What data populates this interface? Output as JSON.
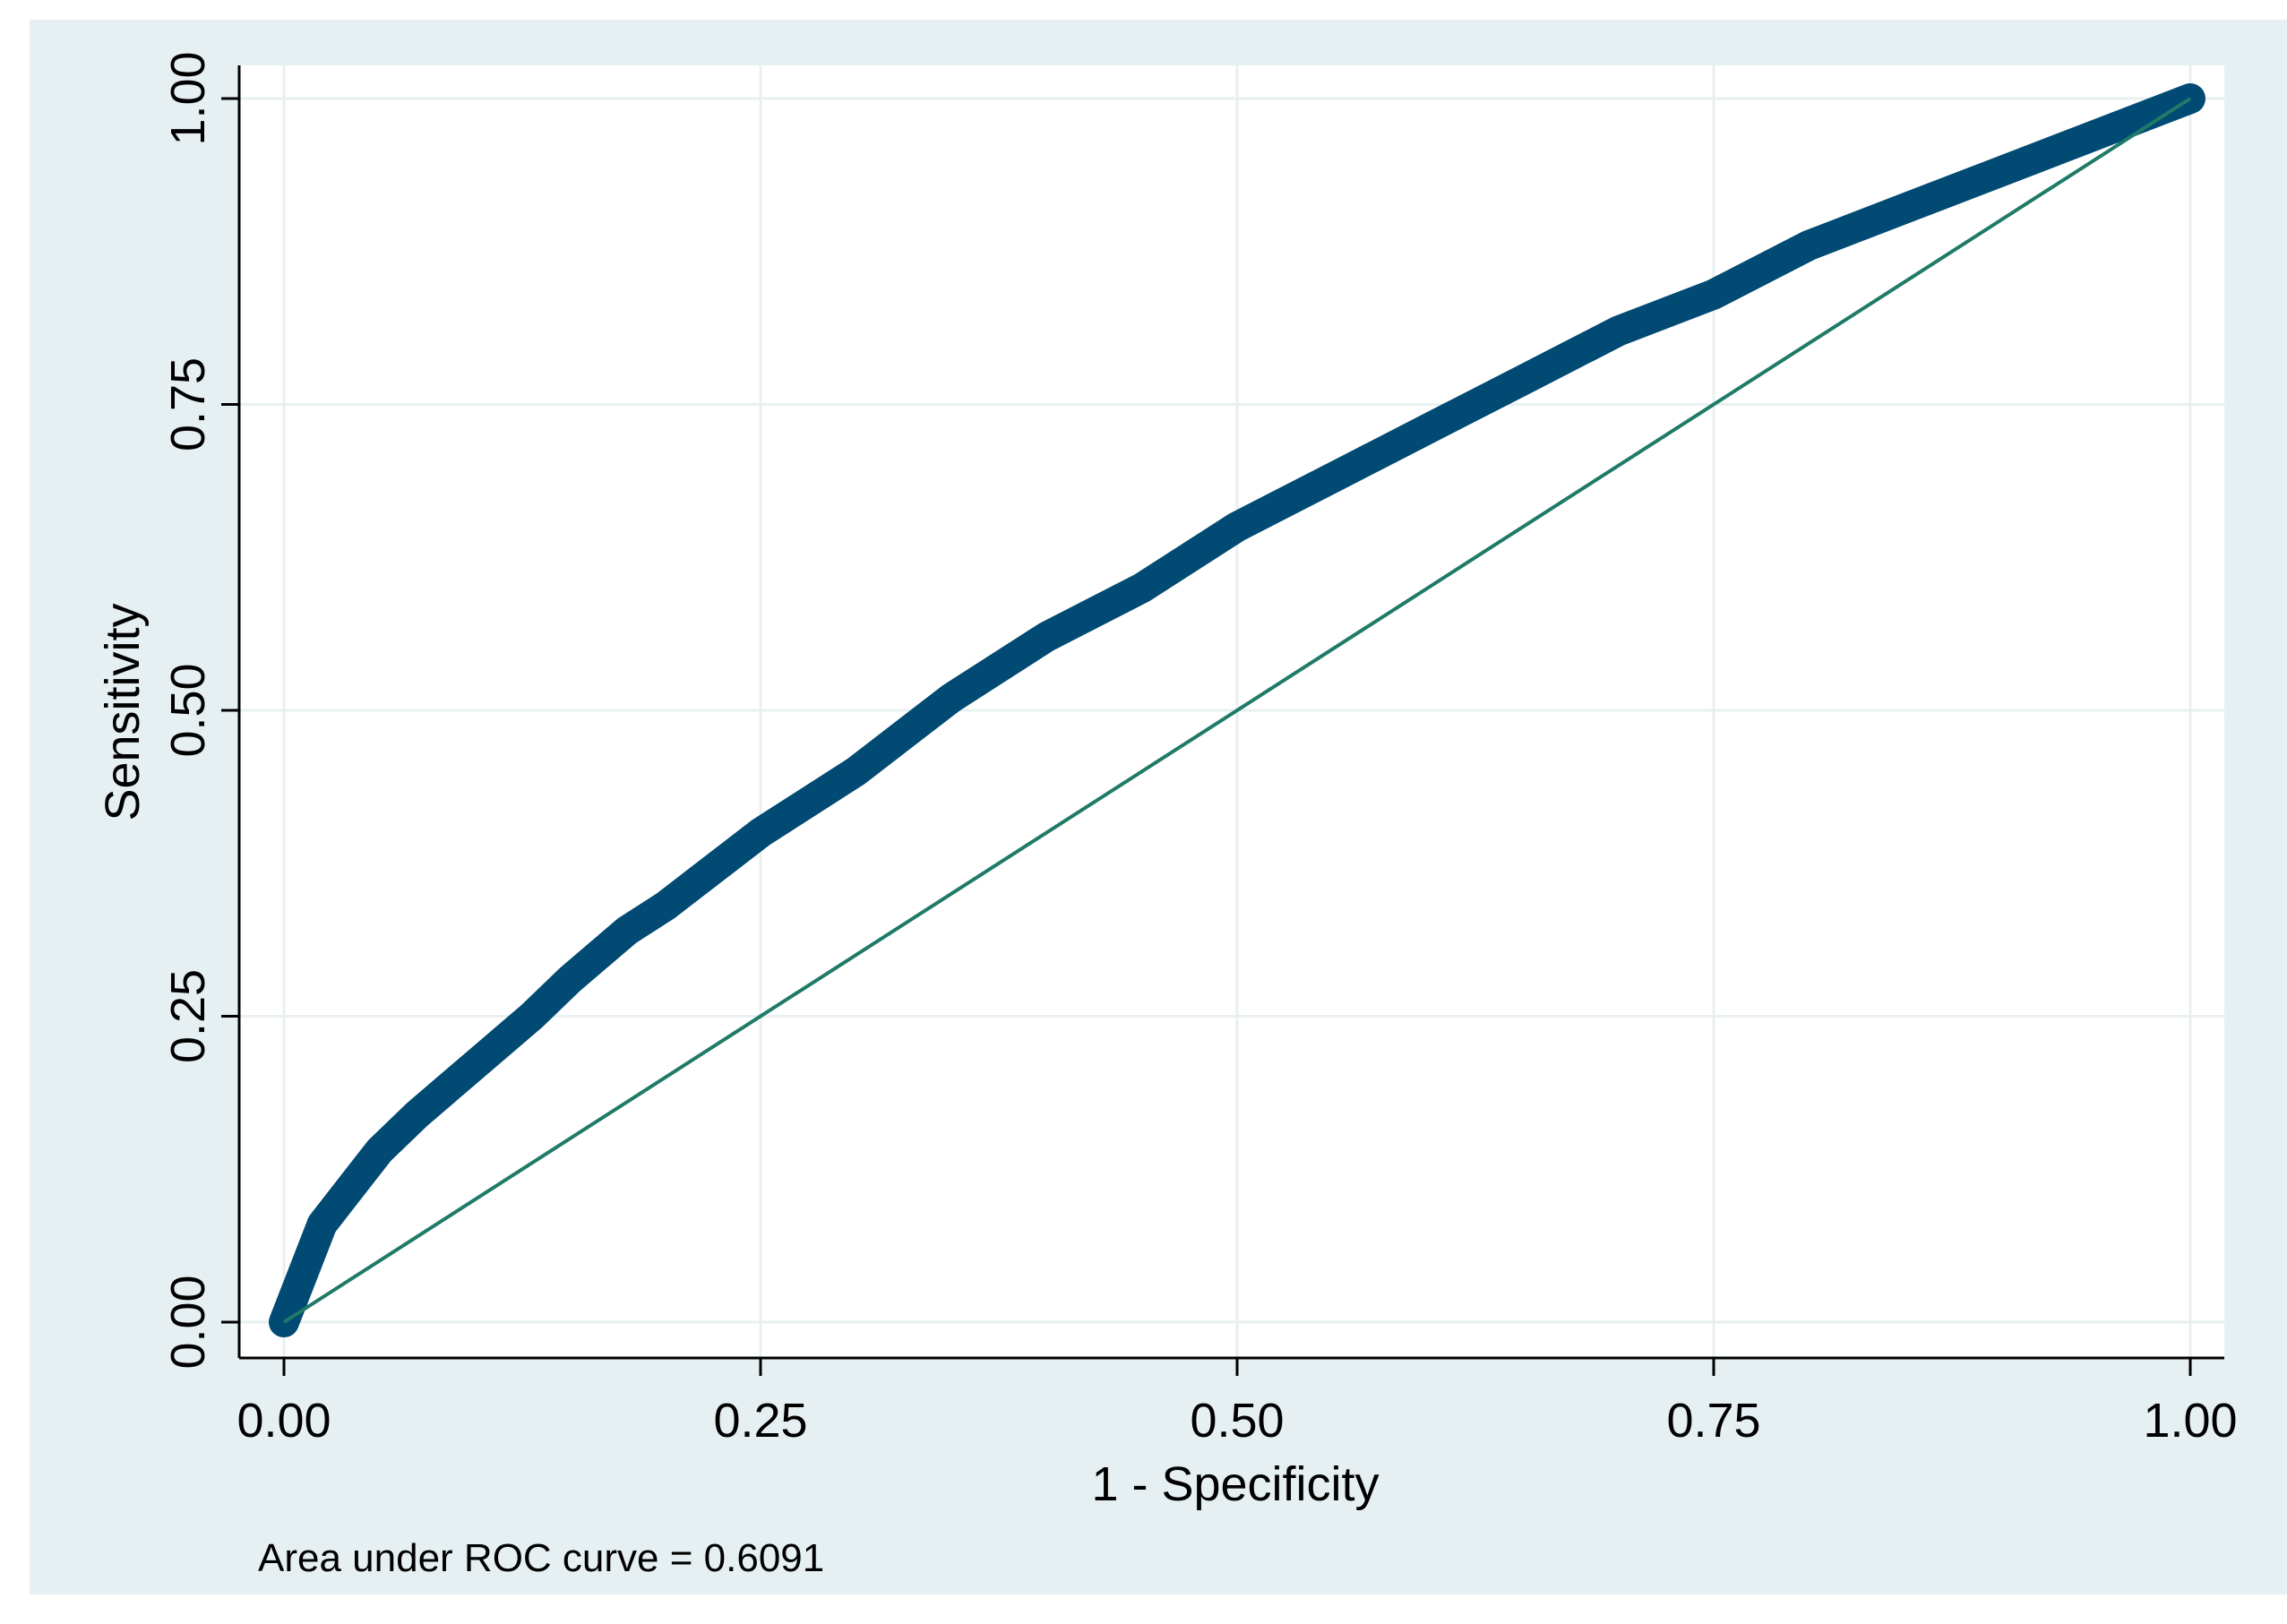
{
  "chart_data": {
    "type": "line",
    "xlabel": "1 - Specificity",
    "ylabel": "Sensitivity",
    "xlim": [
      0,
      1
    ],
    "ylim": [
      0,
      1
    ],
    "xticks": [
      0,
      0.25,
      0.5,
      0.75,
      1
    ],
    "yticks": [
      0,
      0.25,
      0.5,
      0.75,
      1
    ],
    "xtick_labels": [
      "0.00",
      "0.25",
      "0.50",
      "0.75",
      "1.00"
    ],
    "ytick_labels": [
      "0.00",
      "0.25",
      "0.50",
      "0.75",
      "1.00"
    ],
    "grid": true,
    "annotation": "Area under ROC curve = 0.6091",
    "series": [
      {
        "role": "roc-curve",
        "color": "#004a73",
        "x": [
          0.0,
          0.01,
          0.02,
          0.03,
          0.05,
          0.07,
          0.1,
          0.13,
          0.15,
          0.18,
          0.2,
          0.25,
          0.3,
          0.35,
          0.4,
          0.45,
          0.5,
          0.55,
          0.6,
          0.65,
          0.7,
          0.75,
          0.8,
          0.85,
          0.9,
          0.95,
          1.0
        ],
        "y": [
          0.0,
          0.04,
          0.08,
          0.1,
          0.14,
          0.17,
          0.21,
          0.25,
          0.28,
          0.32,
          0.34,
          0.4,
          0.45,
          0.51,
          0.56,
          0.6,
          0.65,
          0.69,
          0.73,
          0.77,
          0.81,
          0.84,
          0.88,
          0.91,
          0.94,
          0.97,
          1.0
        ]
      },
      {
        "role": "reference-line",
        "color": "#1f7a68",
        "x": [
          0,
          1
        ],
        "y": [
          0,
          1
        ]
      }
    ]
  }
}
